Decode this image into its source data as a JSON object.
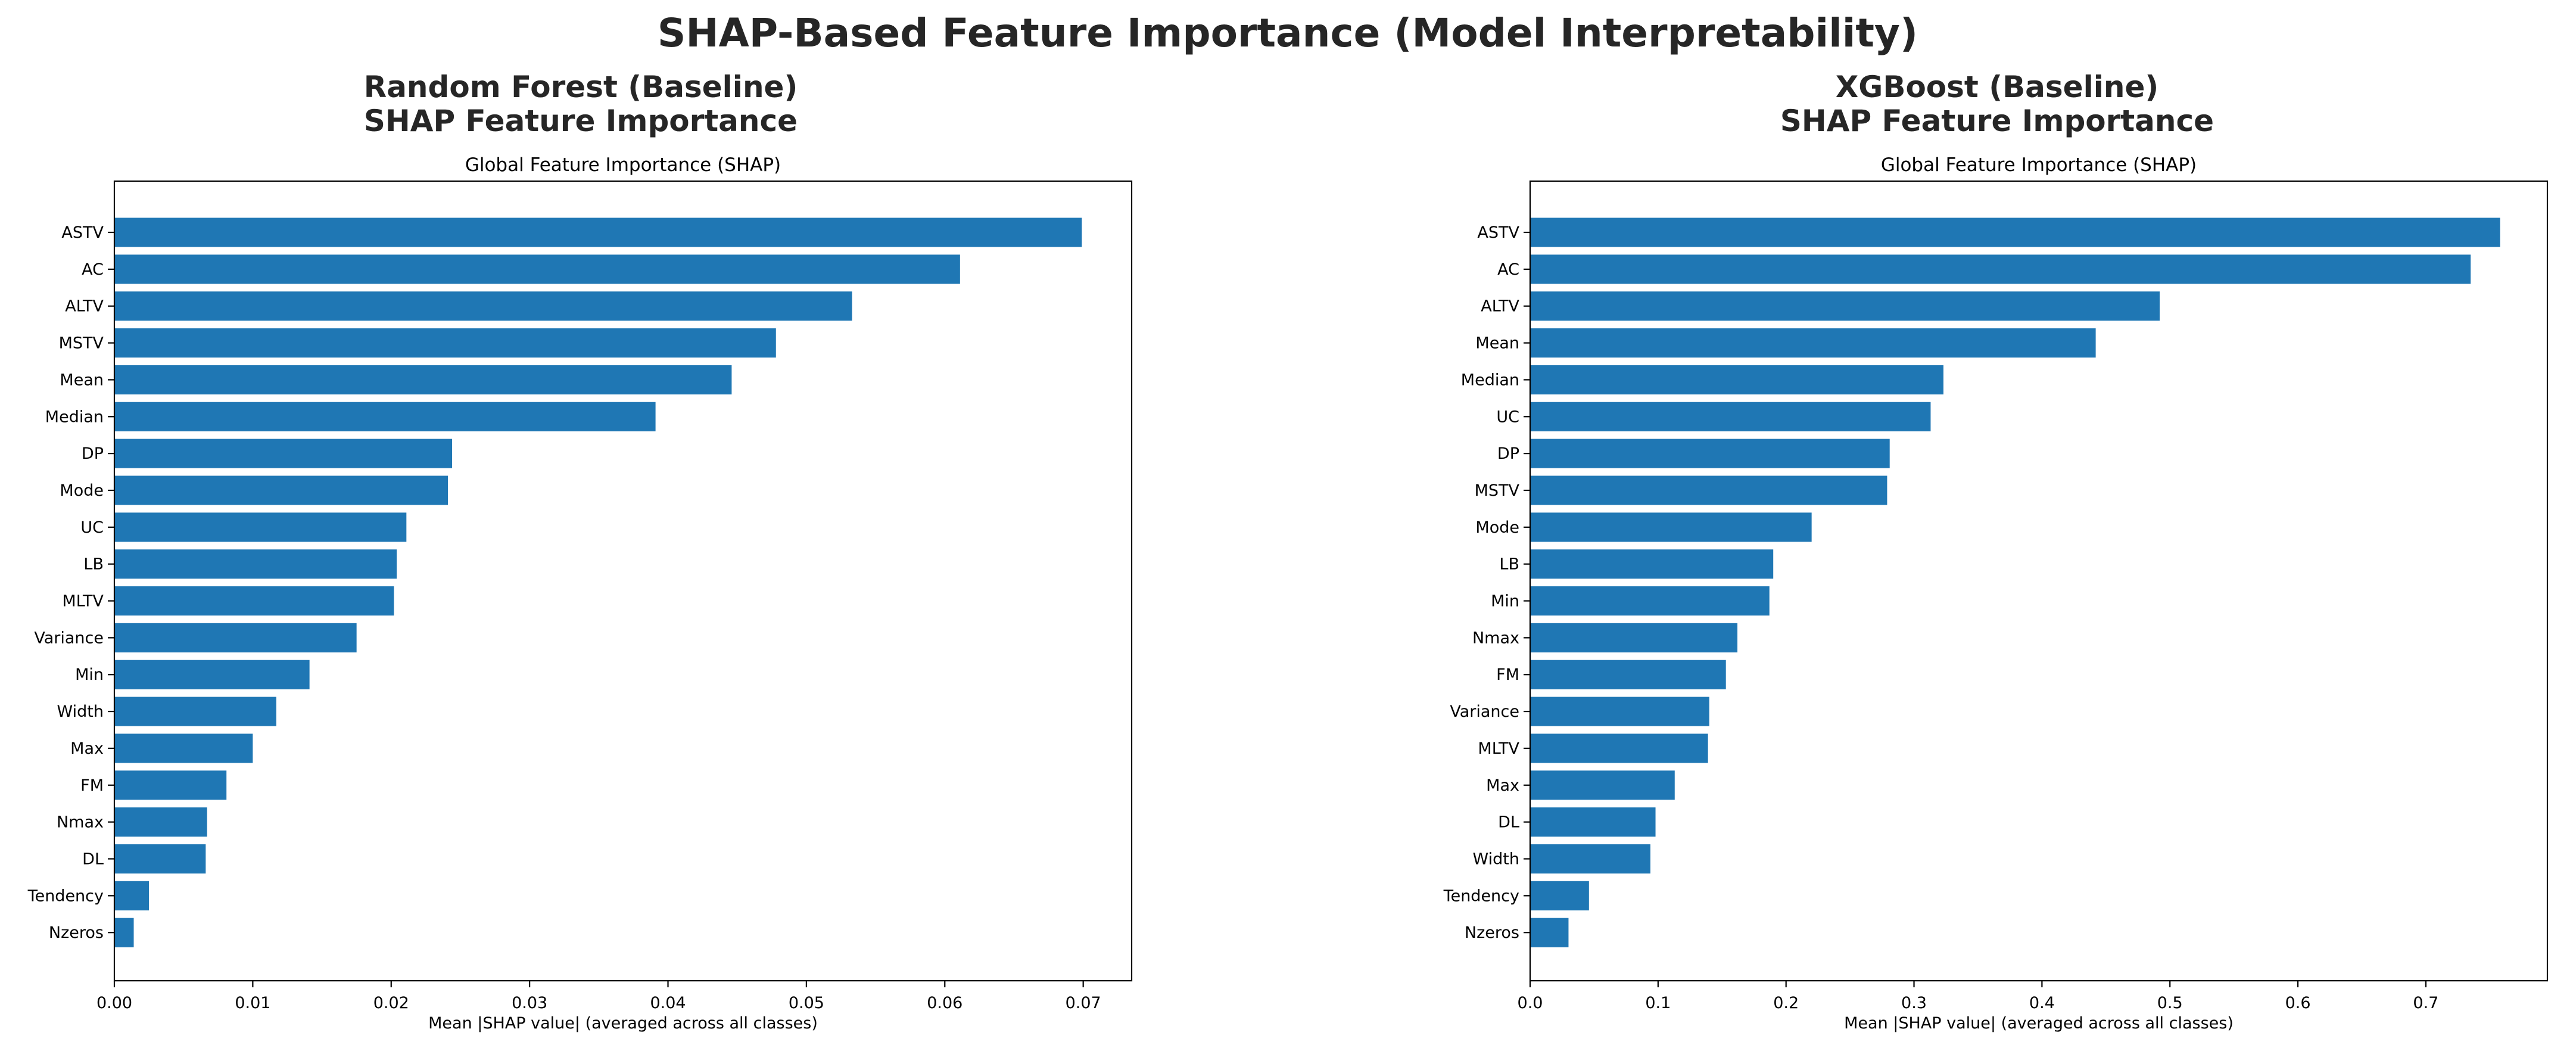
{
  "figure": {
    "title": "SHAP-Based Feature Importance (Model Interpretability)"
  },
  "chart_data": [
    {
      "type": "bar",
      "orientation": "horizontal",
      "subplot_title": [
        "Random Forest (Baseline)",
        "SHAP Feature Importance"
      ],
      "title": "Global Feature Importance (SHAP)",
      "xlabel": "Mean |SHAP value| (averaged across all classes)",
      "ylabel": "",
      "color": "#1f77b4",
      "xlim": [
        0,
        0.0735
      ],
      "xticks": [
        0.0,
        0.01,
        0.02,
        0.03,
        0.04,
        0.05,
        0.06,
        0.07
      ],
      "xtick_labels": [
        "0.00",
        "0.01",
        "0.02",
        "0.03",
        "0.04",
        "0.05",
        "0.06",
        "0.07"
      ],
      "grid": false,
      "categories": [
        "ASTV",
        "AC",
        "ALTV",
        "MSTV",
        "Mean",
        "Median",
        "DP",
        "Mode",
        "UC",
        "LB",
        "MLTV",
        "Variance",
        "Min",
        "Width",
        "Max",
        "FM",
        "Nmax",
        "DL",
        "Tendency",
        "Nzeros"
      ],
      "values": [
        0.0699,
        0.0611,
        0.0533,
        0.0478,
        0.0446,
        0.0391,
        0.0244,
        0.0241,
        0.0211,
        0.0204,
        0.0202,
        0.0175,
        0.0141,
        0.0117,
        0.01,
        0.0081,
        0.0067,
        0.0066,
        0.0025,
        0.0014
      ]
    },
    {
      "type": "bar",
      "orientation": "horizontal",
      "subplot_title": [
        "XGBoost (Baseline)",
        "SHAP Feature Importance"
      ],
      "title": "Global Feature Importance (SHAP)",
      "xlabel": "Mean |SHAP value| (averaged across all classes)",
      "ylabel": "",
      "color": "#1f77b4",
      "xlim": [
        0,
        0.795
      ],
      "xticks": [
        0.0,
        0.1,
        0.2,
        0.3,
        0.4,
        0.5,
        0.6,
        0.7
      ],
      "xtick_labels": [
        "0.0",
        "0.1",
        "0.2",
        "0.3",
        "0.4",
        "0.5",
        "0.6",
        "0.7"
      ],
      "grid": false,
      "categories": [
        "ASTV",
        "AC",
        "ALTV",
        "Mean",
        "Median",
        "UC",
        "DP",
        "MSTV",
        "Mode",
        "LB",
        "Min",
        "Nmax",
        "FM",
        "Variance",
        "MLTV",
        "Max",
        "DL",
        "Width",
        "Tendency",
        "Nzeros"
      ],
      "values": [
        0.758,
        0.735,
        0.492,
        0.442,
        0.323,
        0.313,
        0.281,
        0.279,
        0.22,
        0.19,
        0.187,
        0.162,
        0.153,
        0.14,
        0.139,
        0.113,
        0.098,
        0.094,
        0.046,
        0.03
      ]
    }
  ]
}
